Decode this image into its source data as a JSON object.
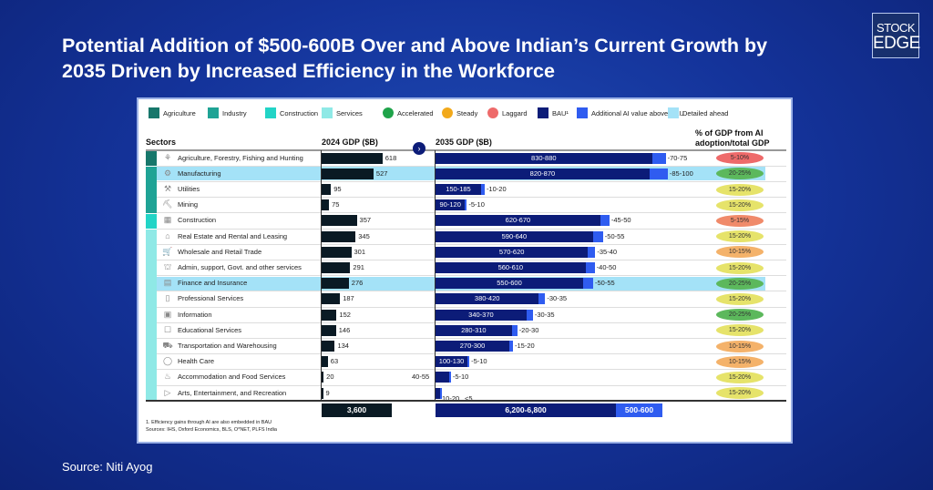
{
  "title": "Potential Addition of $500-600B Over and Above Indian’s Current Growth by 2035 Driven by Increased Efficiency in the Workforce",
  "logo": {
    "line1": "STOCK",
    "line2": "EDGE"
  },
  "source": "Source: Niti Ayog",
  "legend": [
    {
      "label": "Agriculture",
      "color": "#17776b",
      "shape": "square"
    },
    {
      "label": "Industry",
      "color": "#1fa395",
      "shape": "square"
    },
    {
      "label": "Construction",
      "color": "#22d4c6",
      "shape": "square"
    },
    {
      "label": "Services",
      "color": "#8fe9e6",
      "shape": "square"
    },
    {
      "label": "Accelerated",
      "color": "#1fa34a",
      "shape": "circle"
    },
    {
      "label": "Steady",
      "color": "#f2a91b",
      "shape": "circle"
    },
    {
      "label": "Laggard",
      "color": "#ee6a6a",
      "shape": "circle"
    },
    {
      "label": "BAU¹",
      "color": "#0c1c78",
      "shape": "square"
    },
    {
      "label": "Additional AI value above BAU",
      "color": "#2f5cf0",
      "shape": "square"
    },
    {
      "label": "Detailed ahead",
      "color": "#a4e2f7",
      "shape": "square"
    }
  ],
  "headers": {
    "sectors": "Sectors",
    "gdp2024": "2024 GDP ($B)",
    "gdp2035": "2035 GDP ($B)",
    "share": "% of GDP from AI adoption/total GDP"
  },
  "chart_data": {
    "type": "bar",
    "categories": [
      "Agriculture, Forestry, Fishing and Hunting",
      "Manufacturing",
      "Utilities",
      "Mining",
      "Construction",
      "Real Estate and Rental and Leasing",
      "Wholesale and Retail Trade",
      "Admin, support, Govt. and other services",
      "Finance and Insurance",
      "Professional Services",
      "Information",
      "Educational Services",
      "Transportation and Warehousing",
      "Health Care",
      "Accommodation and Food Services",
      "Arts, Entertainment, and Recreation"
    ],
    "groups": [
      "Agriculture",
      "Industry",
      "Industry",
      "Industry",
      "Construction",
      "Services",
      "Services",
      "Services",
      "Services",
      "Services",
      "Services",
      "Services",
      "Services",
      "Services",
      "Services",
      "Services"
    ],
    "highlighted": [
      false,
      true,
      false,
      false,
      false,
      false,
      false,
      false,
      true,
      false,
      false,
      false,
      false,
      false,
      false,
      false
    ],
    "gdp_2024": [
      618,
      527,
      95,
      75,
      357,
      345,
      301,
      291,
      276,
      187,
      152,
      146,
      134,
      63,
      20,
      9
    ],
    "bau_2035": [
      "830-880",
      "820-870",
      "150-185",
      "90-120",
      "620-670",
      "590-640",
      "570-620",
      "560-610",
      "550-600",
      "380-420",
      "340-370",
      "280-310",
      "270-300",
      "100-130",
      "40-55",
      "10-20"
    ],
    "ai_addition": [
      "70-75",
      "85-100",
      "10-20",
      "5-10",
      "45-50",
      "50-55",
      "35-40",
      "40-50",
      "50-55",
      "30-35",
      "30-35",
      "20-30",
      "15-20",
      "5-10",
      "5-10",
      "<5"
    ],
    "ai_share": [
      "5-10%",
      "20-25%",
      "15-20%",
      "15-20%",
      "5-15%",
      "15-20%",
      "10-15%",
      "15-20%",
      "20-25%",
      "15-20%",
      "20-25%",
      "15-20%",
      "10-15%",
      "10-15%",
      "15-20%",
      "15-20%"
    ],
    "totals": {
      "gdp_2024": "3,600",
      "bau_2035": "6,200-6,800",
      "ai_addition": "500-600"
    }
  },
  "footnotes": [
    "1.    Efficiency gains through AI are also embedded in BAU",
    "Sources: IHS, Oxford Economics, BLS, O*NET, PLFS India"
  ]
}
